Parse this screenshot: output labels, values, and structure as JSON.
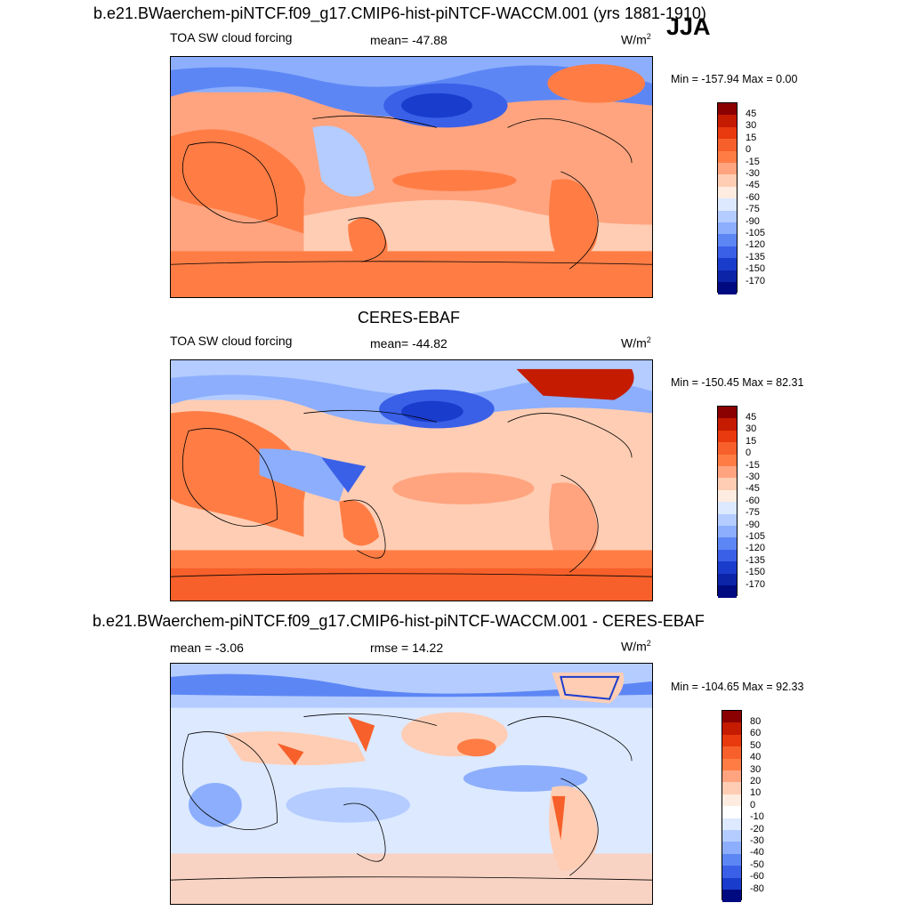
{
  "header": {
    "main_title": "b.e21.BWaerchem-piNTCF.f09_g17.CMIP6-hist-piNTCF-WACCM.001 (yrs 1881-1910)",
    "season": "JJA"
  },
  "chart_data": [
    {
      "type": "heatmap",
      "title": "",
      "variable": "TOA SW cloud forcing",
      "stat_label": "mean= -47.88",
      "units": "W/m",
      "units_exp": "2",
      "minmax": "Min = -157.94 Max =   0.00",
      "colorbar": {
        "labels": [
          "45",
          "30",
          "15",
          "0",
          "-15",
          "-30",
          "-45",
          "-60",
          "-75",
          "-90",
          "-105",
          "-120",
          "-135",
          "-150",
          "-170"
        ],
        "colors": [
          "#8b0000",
          "#c51b00",
          "#e83a0e",
          "#f7602a",
          "#ff7d45",
          "#ffa47f",
          "#ffcdb4",
          "#ffece0",
          "#dce9ff",
          "#b4ccff",
          "#8caefc",
          "#5d86f5",
          "#3a60e8",
          "#1a3ccc",
          "#0b24a8",
          "#000a80"
        ]
      }
    },
    {
      "type": "heatmap",
      "title": "CERES-EBAF",
      "variable": "TOA SW cloud forcing",
      "stat_label": "mean= -44.82",
      "units": "W/m",
      "units_exp": "2",
      "minmax": "Min = -150.45 Max =  82.31",
      "colorbar": {
        "labels": [
          "45",
          "30",
          "15",
          "0",
          "-15",
          "-30",
          "-45",
          "-60",
          "-75",
          "-90",
          "-105",
          "-120",
          "-135",
          "-150",
          "-170"
        ],
        "colors": [
          "#8b0000",
          "#c51b00",
          "#e83a0e",
          "#f7602a",
          "#ff7d45",
          "#ffa47f",
          "#ffcdb4",
          "#ffece0",
          "#dce9ff",
          "#b4ccff",
          "#8caefc",
          "#5d86f5",
          "#3a60e8",
          "#1a3ccc",
          "#0b24a8",
          "#000a80"
        ]
      }
    },
    {
      "type": "heatmap",
      "title": "b.e21.BWaerchem-piNTCF.f09_g17.CMIP6-hist-piNTCF-WACCM.001 - CERES-EBAF",
      "stat_label": "mean =  -3.06",
      "rmse_label": "rmse =  14.22",
      "units": "W/m",
      "units_exp": "2",
      "minmax": "Min = -104.65 Max =  92.33",
      "colorbar": {
        "labels": [
          "80",
          "60",
          "50",
          "40",
          "30",
          "20",
          "10",
          "0",
          "-10",
          "-20",
          "-30",
          "-40",
          "-50",
          "-60",
          "-80"
        ],
        "colors": [
          "#8b0000",
          "#c51b00",
          "#e83a0e",
          "#f7602a",
          "#ff7d45",
          "#ffa47f",
          "#ffcdb4",
          "#ffece0",
          "#ffffff",
          "#dce9ff",
          "#b4ccff",
          "#8caefc",
          "#5d86f5",
          "#3a60e8",
          "#1a3ccc",
          "#000a80"
        ]
      }
    }
  ]
}
